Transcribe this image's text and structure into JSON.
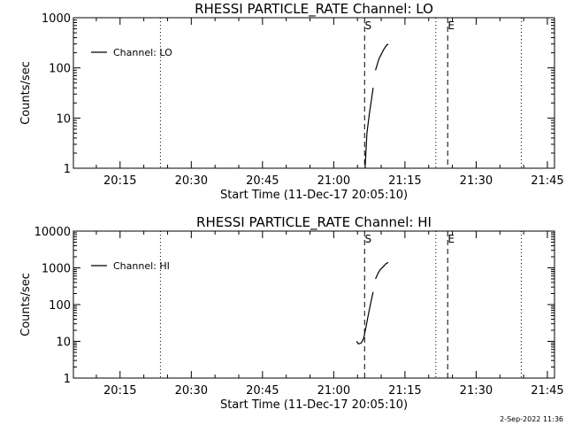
{
  "chart_data": [
    {
      "type": "line",
      "title": "RHESSI PARTICLE_RATE Channel: LO",
      "xlabel": "Start Time (11-Dec-17 20:05:10)",
      "ylabel": "Counts/sec",
      "yscale": "log",
      "ylim": [
        1,
        1000
      ],
      "xlim_minutes_after_2000": [
        5.17,
        46.5
      ],
      "xtick_labels": [
        "20:15",
        "20:30",
        "20:45",
        "21:00",
        "21:15",
        "21:30",
        "21:45"
      ],
      "xtick_minutes_after_2000": [
        15,
        30,
        45,
        60,
        75,
        90,
        105
      ],
      "ytick_labels": [
        "1",
        "10",
        "100",
        "1000"
      ],
      "ytick_values": [
        1,
        10,
        100,
        1000
      ],
      "legend": {
        "label": "Channel: LO",
        "placement": "top-left"
      },
      "dotted_lines_minutes_after_2000": [
        23.5,
        81.5,
        99.5
      ],
      "dashed_lines": [
        {
          "label": "S",
          "minute_after_2000": 66.5
        },
        {
          "label": "E",
          "minute_after_2000": 84.0
        }
      ],
      "series": [
        {
          "segments": [
            [
              [
                66.6,
                1
              ],
              [
                67.0,
                5
              ],
              [
                67.5,
                12
              ],
              [
                68.0,
                25
              ],
              [
                68.3,
                40
              ]
            ],
            [
              [
                68.8,
                90
              ],
              [
                69.5,
                150
              ],
              [
                70.5,
                230
              ],
              [
                71.2,
                290
              ],
              [
                71.5,
                295
              ]
            ]
          ]
        }
      ]
    },
    {
      "type": "line",
      "title": "RHESSI PARTICLE_RATE Channel: HI",
      "xlabel": "Start Time (11-Dec-17 20:05:10)",
      "ylabel": "Counts/sec",
      "yscale": "log",
      "ylim": [
        1,
        10000
      ],
      "xlim_minutes_after_2000": [
        5.17,
        46.5
      ],
      "xtick_labels": [
        "20:15",
        "20:30",
        "20:45",
        "21:00",
        "21:15",
        "21:30",
        "21:45"
      ],
      "xtick_minutes_after_2000": [
        15,
        30,
        45,
        60,
        75,
        90,
        105
      ],
      "ytick_labels": [
        "1",
        "10",
        "100",
        "1000",
        "10000"
      ],
      "ytick_values": [
        1,
        10,
        100,
        1000,
        10000
      ],
      "legend": {
        "label": "Channel: HI",
        "placement": "top-left"
      },
      "dotted_lines_minutes_after_2000": [
        23.5,
        81.5,
        99.5
      ],
      "dashed_lines": [
        {
          "label": "S",
          "minute_after_2000": 66.5
        },
        {
          "label": "E",
          "minute_after_2000": 84.0
        }
      ],
      "series": [
        {
          "segments": [
            [
              [
                64.8,
                10
              ],
              [
                65.2,
                8.5
              ],
              [
                65.8,
                9
              ],
              [
                66.3,
                12
              ],
              [
                66.8,
                25
              ],
              [
                67.3,
                55
              ],
              [
                67.8,
                110
              ],
              [
                68.3,
                220
              ]
            ],
            [
              [
                68.8,
                500
              ],
              [
                69.3,
                700
              ],
              [
                69.8,
                900
              ],
              [
                70.5,
                1100
              ],
              [
                71.0,
                1300
              ],
              [
                71.5,
                1400
              ]
            ]
          ]
        }
      ]
    }
  ],
  "timestamp": "2-Sep-2022 11:36"
}
